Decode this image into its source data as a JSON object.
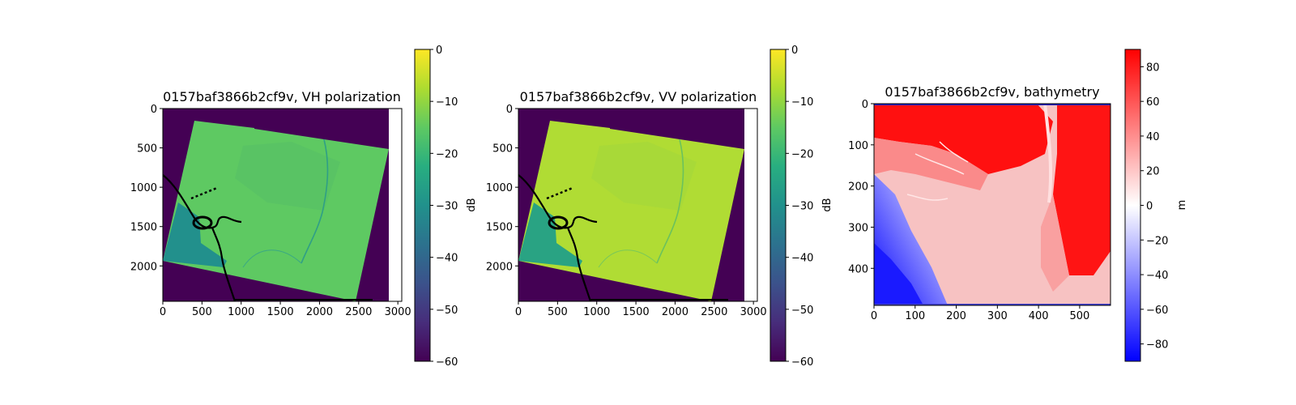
{
  "chart_data": [
    {
      "type": "heatmap",
      "title": "0157baf3866b2cf9v, VH polarization",
      "xlabel": "",
      "ylabel": "",
      "xlim": [
        0,
        3050
      ],
      "ylim": [
        2450,
        0
      ],
      "x_ticks": [
        0,
        500,
        1000,
        1500,
        2000,
        2500,
        3000
      ],
      "x_tick_labels": [
        "0",
        "500",
        "1000",
        "1500",
        "2000",
        "2500",
        "3000"
      ],
      "y_ticks": [
        0,
        500,
        1000,
        1500,
        2000
      ],
      "y_tick_labels": [
        "0",
        "500",
        "1000",
        "1500",
        "2000"
      ],
      "colormap": "viridis",
      "colorbar": {
        "label": "dB",
        "range": [
          -60,
          0
        ],
        "ticks": [
          0,
          -10,
          -20,
          -30,
          -40,
          -50,
          -60
        ],
        "tick_labels": [
          "0",
          "−10",
          "−20",
          "−30",
          "−40",
          "−50",
          "−60"
        ]
      },
      "footprint_corners": [
        [
          400,
          150
        ],
        [
          2880,
          520
        ],
        [
          2480,
          2450
        ],
        [
          0,
          1950
        ]
      ],
      "background_value_db": -60,
      "typical_value_db": -17,
      "ocean_value_db": -26,
      "no_data_strip_x": [
        2880,
        3050
      ]
    },
    {
      "type": "heatmap",
      "title": "0157baf3866b2cf9v, VV polarization",
      "xlabel": "",
      "ylabel": "",
      "xlim": [
        0,
        3050
      ],
      "ylim": [
        2450,
        0
      ],
      "x_ticks": [
        0,
        500,
        1000,
        1500,
        2000,
        2500,
        3000
      ],
      "x_tick_labels": [
        "0",
        "500",
        "1000",
        "1500",
        "2000",
        "2500",
        "3000"
      ],
      "y_ticks": [
        0,
        500,
        1000,
        1500,
        2000
      ],
      "y_tick_labels": [
        "0",
        "500",
        "1000",
        "1500",
        "2000"
      ],
      "colormap": "viridis",
      "colorbar": {
        "label": "dB",
        "range": [
          -60,
          0
        ],
        "ticks": [
          0,
          -10,
          -20,
          -30,
          -40,
          -50,
          -60
        ],
        "tick_labels": [
          "0",
          "−10",
          "−20",
          "−30",
          "−40",
          "−50",
          "−60"
        ]
      },
      "footprint_corners": [
        [
          400,
          150
        ],
        [
          2880,
          520
        ],
        [
          2480,
          2450
        ],
        [
          0,
          1950
        ]
      ],
      "background_value_db": -60,
      "typical_value_db": -9,
      "ocean_value_db": -22,
      "no_data_strip_x": [
        2880,
        3050
      ]
    },
    {
      "type": "heatmap",
      "title": "0157baf3866b2cf9v, bathymetry",
      "xlabel": "",
      "ylabel": "",
      "xlim": [
        0,
        575
      ],
      "ylim": [
        490,
        0
      ],
      "x_ticks": [
        0,
        100,
        200,
        300,
        400,
        500
      ],
      "x_tick_labels": [
        "0",
        "100",
        "200",
        "300",
        "400",
        "500"
      ],
      "y_ticks": [
        0,
        100,
        200,
        300,
        400
      ],
      "y_tick_labels": [
        "0",
        "100",
        "200",
        "300",
        "400"
      ],
      "colormap": "bwr",
      "colorbar": {
        "label": "m",
        "range": [
          -90,
          90
        ],
        "ticks": [
          80,
          60,
          40,
          20,
          0,
          -20,
          -40,
          -60,
          -80
        ],
        "tick_labels": [
          "80",
          "60",
          "40",
          "20",
          "0",
          "−20",
          "−40",
          "−60",
          "−80"
        ]
      },
      "high_ground_value_m": 90,
      "lowland_value_m": 20,
      "sea_value_m": -90
    }
  ]
}
